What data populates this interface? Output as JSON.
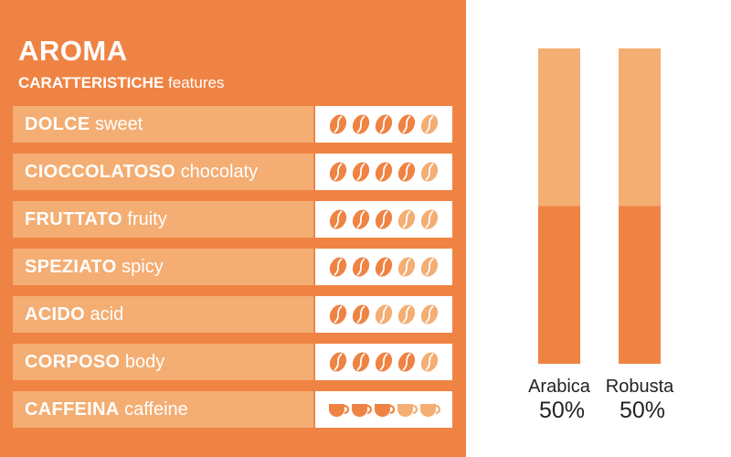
{
  "colors": {
    "panel": "#ef8343",
    "label_bg": "#f4ad72",
    "filled": "#ef8343",
    "empty": "#f4ad72"
  },
  "header": {
    "title": "AROMA",
    "subtitle_bold": "CARATTERISTICHE",
    "subtitle_rest": "features"
  },
  "chart_data": [
    {
      "type": "table",
      "title": "AROMA",
      "subtitle": "CARATTERISTICHE features",
      "max_score": 5,
      "rows": [
        {
          "it": "DOLCE",
          "en": "sweet",
          "score": 4,
          "icon": "coffee-bean-icon"
        },
        {
          "it": "CIOCCOLATOSO",
          "en": "chocolaty",
          "score": 4,
          "icon": "coffee-bean-icon"
        },
        {
          "it": "FRUTTATO",
          "en": "fruity",
          "score": 3,
          "icon": "coffee-bean-icon"
        },
        {
          "it": "SPEZIATO",
          "en": "spicy",
          "score": 3,
          "icon": "coffee-bean-icon"
        },
        {
          "it": "ACIDO",
          "en": "acid",
          "score": 2,
          "icon": "coffee-bean-icon"
        },
        {
          "it": "CORPOSO",
          "en": "body",
          "score": 4,
          "icon": "coffee-bean-icon"
        },
        {
          "it": "CAFFEINA",
          "en": "caffeine",
          "score": 3,
          "icon": "coffee-cup-icon"
        }
      ]
    },
    {
      "type": "bar",
      "categories": [
        "Arabica",
        "Robusta"
      ],
      "values": [
        50,
        50
      ],
      "value_labels": [
        "50%",
        "50%"
      ],
      "ylim": [
        0,
        100
      ],
      "title": "",
      "xlabel": "",
      "ylabel": ""
    }
  ]
}
